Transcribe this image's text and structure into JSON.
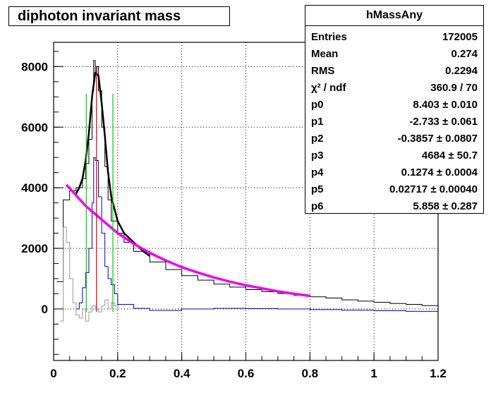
{
  "title": "diphoton invariant mass",
  "stats": {
    "name": "hMassAny",
    "rows": [
      {
        "key": "Entries",
        "value": "172005"
      },
      {
        "key": "Mean",
        "value": "0.274"
      },
      {
        "key": "RMS",
        "value": "0.2294"
      },
      {
        "key": "χ² / ndf",
        "value": "360.9 / 70"
      },
      {
        "key": "p0",
        "value": "8.403 ± 0.010"
      },
      {
        "key": "p1",
        "value": "-2.733 ± 0.061"
      },
      {
        "key": "p2",
        "value": "-0.3857 ± 0.0807"
      },
      {
        "key": "p3",
        "value": "4684 ± 50.7"
      },
      {
        "key": "p4",
        "value": "0.1274 ± 0.0004"
      },
      {
        "key": "p5",
        "value": "0.02717 ± 0.00040"
      },
      {
        "key": "p6",
        "value": "5.858 ± 0.287"
      }
    ]
  },
  "chart_data": {
    "type": "line",
    "title": "diphoton invariant mass",
    "xlim": [
      0,
      1.2
    ],
    "ylim": [
      -1700,
      8800
    ],
    "xticks": [
      "0",
      "0.2",
      "0.4",
      "0.6",
      "0.8",
      "1",
      "1.2"
    ],
    "yticks": [
      "0",
      "2000",
      "4000",
      "6000",
      "8000"
    ],
    "grid": true,
    "series": [
      {
        "color": "#000000",
        "style": "histogram",
        "x": [
          0.01,
          0.03,
          0.05,
          0.07,
          0.09,
          0.1,
          0.11,
          0.12,
          0.125,
          0.13,
          0.135,
          0.14,
          0.15,
          0.16,
          0.17,
          0.18,
          0.2,
          0.22,
          0.25,
          0.3,
          0.35,
          0.4,
          0.45,
          0.5,
          0.55,
          0.6,
          0.65,
          0.7,
          0.75,
          0.8,
          0.85,
          0.9,
          0.95,
          1.0,
          1.05,
          1.1,
          1.15,
          1.2
        ],
        "y": [
          900,
          3600,
          3900,
          4000,
          4300,
          4800,
          5600,
          7200,
          8200,
          7800,
          8000,
          7200,
          6000,
          4700,
          3600,
          2900,
          2500,
          2200,
          1900,
          1550,
          1300,
          1100,
          950,
          820,
          720,
          640,
          570,
          510,
          450,
          400,
          360,
          300,
          260,
          220,
          180,
          150,
          110,
          60
        ]
      },
      {
        "color": "#0000cc",
        "style": "histogram",
        "x": [
          0.07,
          0.08,
          0.09,
          0.1,
          0.11,
          0.12,
          0.125,
          0.13,
          0.14,
          0.15,
          0.16,
          0.17,
          0.18,
          0.19,
          0.2,
          0.25,
          0.3,
          0.4,
          0.5,
          0.6,
          0.7,
          0.8,
          0.9,
          1.0,
          1.1,
          1.2
        ],
        "y": [
          0,
          200,
          700,
          1200,
          2000,
          3500,
          5000,
          4900,
          3700,
          2500,
          1400,
          1000,
          800,
          500,
          150,
          20,
          -50,
          0,
          20,
          10,
          0,
          -20,
          -40,
          -60,
          -80,
          -50
        ]
      },
      {
        "color": "#999999",
        "style": "histogram",
        "x": [
          0.02,
          0.03,
          0.04,
          0.05,
          0.06,
          0.07,
          0.08,
          0.09,
          0.1,
          0.11,
          0.12,
          0.13,
          0.14,
          0.15,
          0.16,
          0.17,
          0.18,
          0.19,
          0.2
        ],
        "y": [
          -400,
          2700,
          2200,
          1000,
          200,
          -200,
          -300,
          0,
          -400,
          -100,
          100,
          0,
          -100,
          100,
          300,
          0,
          200,
          100,
          0
        ]
      },
      {
        "color": "#000000",
        "style": "smooth",
        "x": [
          0.07,
          0.08,
          0.09,
          0.1,
          0.11,
          0.12,
          0.13,
          0.14,
          0.15,
          0.16,
          0.17,
          0.18,
          0.2,
          0.22,
          0.25,
          0.28,
          0.3
        ],
        "y": [
          3800,
          4000,
          4300,
          4900,
          5800,
          7000,
          7800,
          7700,
          6800,
          5700,
          4500,
          3700,
          2900,
          2500,
          2200,
          1900,
          1750
        ]
      },
      {
        "color": "#ee00ee",
        "style": "smooth",
        "x": [
          0.04,
          0.1,
          0.15,
          0.2,
          0.25,
          0.3,
          0.35,
          0.4,
          0.45,
          0.5,
          0.55,
          0.6,
          0.65,
          0.7,
          0.75,
          0.8
        ],
        "y": [
          4100,
          3400,
          2950,
          2500,
          2150,
          1850,
          1600,
          1380,
          1200,
          1040,
          900,
          780,
          680,
          580,
          500,
          430
        ]
      }
    ],
    "markers": [
      {
        "x": 0.102,
        "color": "#00cc00"
      },
      {
        "x": 0.185,
        "color": "#00cc00"
      },
      {
        "x": 0.134,
        "color": "#cc0000"
      }
    ]
  }
}
